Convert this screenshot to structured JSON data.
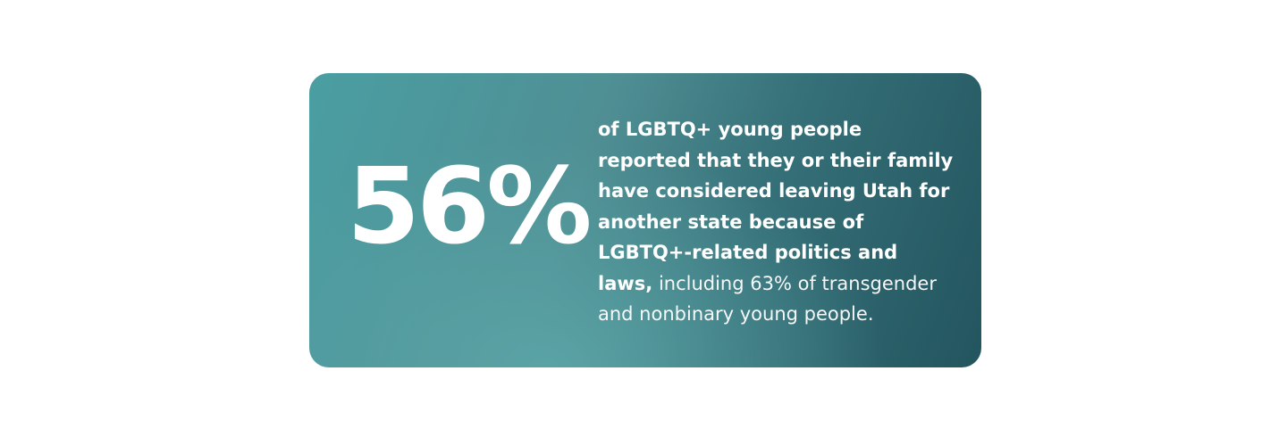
{
  "stat": {
    "figure": "56%",
    "bold_text": "of LGBTQ+ young people reported that they or their family have considered leaving Utah for another state because of LGBTQ+-related politics and laws,",
    "regular_text": "including 63% of transgender and nonbinary young people."
  }
}
